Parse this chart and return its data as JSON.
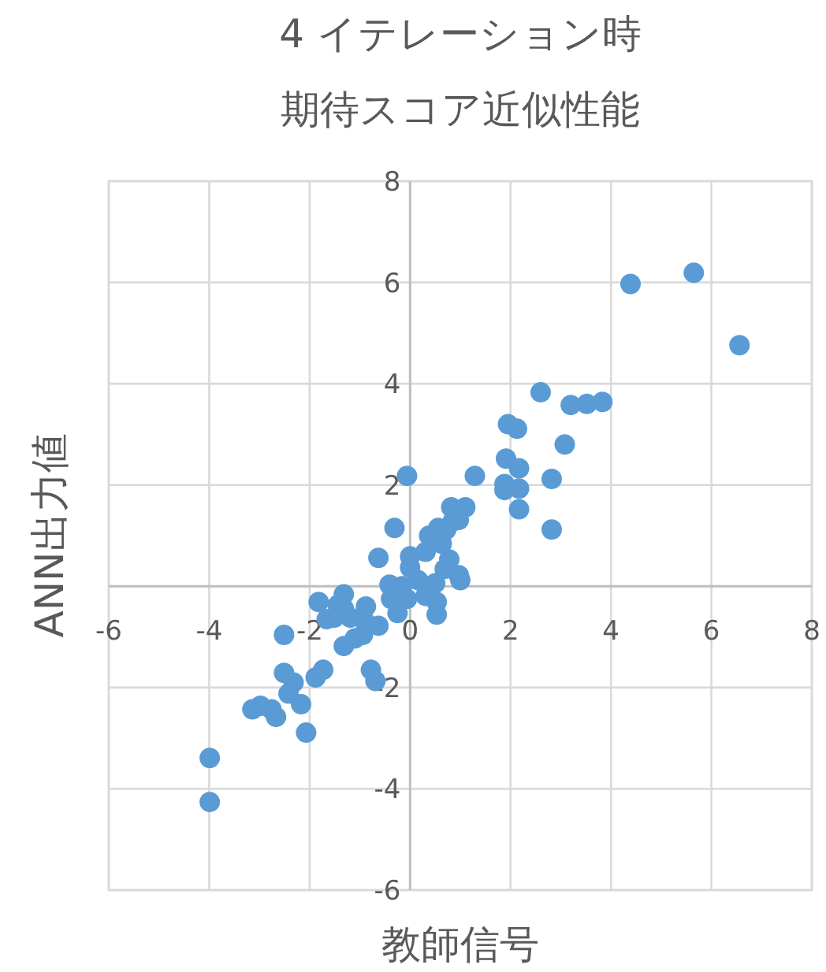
{
  "chart_data": {
    "type": "scatter",
    "title": "4 イテレーション時",
    "subtitle": "期待スコア近似性能",
    "xlabel": "教師信号",
    "ylabel": "ANN出力値",
    "xlim": [
      -6,
      8
    ],
    "ylim": [
      -6,
      8
    ],
    "xticks": [
      -6,
      -4,
      -2,
      0,
      2,
      4,
      6,
      8
    ],
    "yticks": [
      -6,
      -4,
      -2,
      0,
      2,
      4,
      6,
      8
    ],
    "grid": true,
    "marker": "circle",
    "series": [
      {
        "color": "#5b9bd5",
        "x": [
          4.39,
          5.65,
          6.56,
          2.6,
          1.95,
          2.13,
          3.2,
          3.52,
          3.83,
          3.08,
          1.91,
          2.17,
          2.82,
          2.17,
          1.88,
          1.88,
          2.17,
          2.82,
          -0.06,
          1.29,
          0.97,
          0.85,
          0.72,
          1.1,
          0.82,
          0.56,
          0.38,
          0.63,
          0.78,
          1.0,
          0.69,
          0.31,
          0.5,
          0.97,
          -0.31,
          -0.63,
          0.0,
          0.0,
          0.16,
          0.31,
          0.53,
          0.53,
          -0.16,
          -0.41,
          -0.38,
          -0.25,
          -0.06,
          -0.63,
          -0.94,
          -1.19,
          -1.32,
          -1.32,
          -1.51,
          -1.32,
          -1.1,
          -0.88,
          -0.88,
          -1.82,
          -1.44,
          -1.66,
          -0.69,
          -0.78,
          -2.51,
          -2.51,
          -2.32,
          -2.42,
          -2.17,
          -1.73,
          -1.88,
          -2.76,
          -3.14,
          -2.98,
          -2.67,
          -2.07,
          -3.99,
          -3.99
        ],
        "values": [
          5.97,
          6.19,
          4.76,
          3.83,
          3.2,
          3.11,
          3.58,
          3.6,
          3.64,
          2.8,
          2.52,
          2.33,
          2.12,
          1.93,
          2.02,
          1.9,
          1.52,
          1.12,
          2.18,
          2.18,
          1.31,
          1.28,
          1.12,
          1.56,
          1.56,
          1.15,
          1.0,
          0.84,
          0.53,
          0.12,
          0.34,
          0.68,
          0.06,
          0.22,
          1.15,
          0.56,
          0.59,
          0.37,
          0.12,
          -0.19,
          -0.31,
          -0.56,
          0.0,
          0.03,
          -0.25,
          -0.53,
          -0.25,
          -0.78,
          -0.96,
          -0.62,
          -0.16,
          -0.44,
          -0.62,
          -1.18,
          -1.03,
          -0.72,
          -0.4,
          -0.31,
          -0.37,
          -0.65,
          -1.87,
          -1.65,
          -0.96,
          -1.71,
          -1.9,
          -2.12,
          -2.33,
          -1.65,
          -1.8,
          -2.43,
          -2.43,
          -2.36,
          -2.58,
          -2.89,
          -3.39,
          -4.26
        ]
      }
    ]
  }
}
